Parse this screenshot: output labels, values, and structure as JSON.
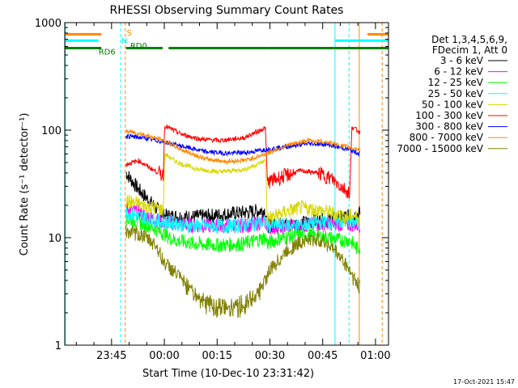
{
  "chart_data": {
    "type": "line",
    "title": "RHESSI Observing Summary Count Rates",
    "xlabel": "Start Time (10-Dec-10 23:31:42)",
    "ylabel": "Count Rate (s⁻¹ detector⁻¹)",
    "yscale": "log",
    "ylim": [
      1,
      1000
    ],
    "xlim_minutes": [
      0,
      92
    ],
    "x_ticks": [
      {
        "label": "23:45",
        "t": 13.3
      },
      {
        "label": "00:00",
        "t": 28.3
      },
      {
        "label": "00:15",
        "t": 43.3
      },
      {
        "label": "00:30",
        "t": 58.3
      },
      {
        "label": "00:45",
        "t": 73.3
      },
      {
        "label": "01:00",
        "t": 88.3
      }
    ],
    "y_ticks": [
      {
        "label": "1",
        "v": 1
      },
      {
        "label": "10",
        "v": 10
      },
      {
        "label": "100",
        "v": 100
      },
      {
        "label": "1000",
        "v": 1000
      }
    ],
    "legend_header": [
      "Det 1,3,4,5,6,9,",
      "FDecim 1, Att 0"
    ],
    "series": [
      {
        "name": "3 - 6 keV",
        "color": "#000000",
        "start": 17.4,
        "kx": [
          17.4,
          21,
          24,
          28,
          35,
          42,
          50,
          57,
          57.6,
          66,
          74,
          82,
          84
        ],
        "ky": [
          40,
          28,
          22,
          16,
          15.5,
          16,
          17,
          18,
          13,
          13.5,
          14.5,
          16,
          17
        ]
      },
      {
        "name": "6 - 12 keV",
        "color": "#ff00ff",
        "start": 17.4,
        "kx": [
          17.4,
          25,
          28,
          35,
          44,
          52,
          57,
          57.6,
          66,
          74,
          81,
          84
        ],
        "ky": [
          19,
          15,
          14,
          13,
          12.8,
          13,
          14,
          12.5,
          12.8,
          13.5,
          13.2,
          13
        ]
      },
      {
        "name": "12 - 25 keV",
        "color": "#00ff00",
        "start": 17.4,
        "kx": [
          17.4,
          21,
          24,
          28,
          31,
          38,
          44,
          51,
          57,
          57.6,
          61,
          66,
          70,
          75,
          78,
          81,
          83,
          84
        ],
        "ky": [
          15,
          14,
          13,
          11,
          9.5,
          8.7,
          8.5,
          8.8,
          10,
          8.8,
          9.8,
          10.5,
          10.5,
          10,
          9.5,
          9.5,
          8,
          8
        ]
      },
      {
        "name": "25 - 50 keV",
        "color": "#00ffff",
        "start": 17.4,
        "kx": [
          17.4,
          24,
          28,
          35,
          42,
          50,
          57,
          57.6,
          66,
          74,
          82,
          84
        ],
        "ky": [
          17,
          15,
          14,
          13,
          12.8,
          13,
          14,
          13,
          13,
          14,
          14,
          13.5
        ]
      },
      {
        "name": "50 - 100 keV",
        "color": "#d8d800",
        "start": 17.4,
        "kx": [
          17.4,
          25,
          28,
          28.4,
          32,
          38,
          44,
          51,
          57,
          57.6,
          62,
          67,
          72,
          76,
          80,
          81.5,
          82,
          84
        ],
        "ky": [
          22,
          19,
          18,
          60,
          50,
          43,
          41,
          43,
          52,
          15,
          17,
          19,
          18,
          17,
          15.5,
          16,
          16,
          15
        ]
      },
      {
        "name": "100 - 300 keV",
        "color": "#ff0000",
        "start": 17.4,
        "kx": [
          17.4,
          21,
          25,
          28,
          28.4,
          33,
          38,
          44,
          51,
          57,
          57.6,
          62,
          67,
          72,
          76,
          81,
          81.6,
          84
        ],
        "ky": [
          48,
          52,
          43,
          38,
          110,
          92,
          83,
          80,
          85,
          105,
          33,
          37,
          42,
          40,
          35,
          26,
          108,
          95
        ]
      },
      {
        "name": "300 - 800 keV",
        "color": "#0000ff",
        "start": 17.4,
        "kx": [
          17.4,
          22,
          28,
          34,
          40,
          46,
          52,
          57,
          63,
          69,
          74,
          80,
          84
        ],
        "ky": [
          88,
          85,
          78,
          70,
          63,
          61,
          62,
          66,
          70,
          75,
          74,
          67,
          60
        ]
      },
      {
        "name": "800 - 7000 keV",
        "color": "#ff8800",
        "start": 17.4,
        "kx": [
          17.4,
          22,
          28,
          34,
          40,
          46,
          52,
          57,
          63,
          69,
          74,
          80,
          84
        ],
        "ky": [
          98,
          92,
          80,
          64,
          54,
          51,
          53,
          60,
          72,
          80,
          78,
          70,
          66
        ]
      },
      {
        "name": "7000 - 15000 keV",
        "color": "#808000",
        "start": 17.4,
        "kx": [
          17.4,
          22,
          26,
          28,
          32,
          36,
          40,
          45,
          50,
          55,
          58,
          63,
          68,
          73,
          77,
          81,
          83,
          84
        ],
        "ky": [
          11.5,
          10.5,
          8.5,
          6,
          4.5,
          3.3,
          2.5,
          2.2,
          2.3,
          3,
          4.8,
          7.5,
          9.5,
          9.5,
          7.5,
          5,
          3.8,
          3.3
        ]
      }
    ],
    "flag_bars": [
      {
        "label": "S",
        "color": "#ff8800",
        "level": 780,
        "segments": [
          [
            0,
            10.4
          ],
          [
            86,
            92
          ]
        ]
      },
      {
        "label": "N",
        "color": "#00ffff",
        "level": 680,
        "segments": [
          [
            0,
            9.6
          ],
          [
            76.8,
            92
          ]
        ]
      },
      {
        "label": "RD0",
        "color": "#008000",
        "level": 580,
        "segments": [
          [
            0,
            10.4
          ],
          [
            17.4,
            27.8
          ],
          [
            29.5,
            57.7
          ],
          [
            57.7,
            76.6
          ],
          [
            76.6,
            92
          ]
        ]
      },
      {
        "label": "RD6",
        "color": "#008000",
        "level": 560,
        "segments": []
      }
    ],
    "flag_labels": [
      {
        "text": "S",
        "color": "#ff8800",
        "t": 17.6,
        "y": 760
      },
      {
        "text": "N",
        "color": "#00ffff",
        "t": 16.1,
        "y": 640
      },
      {
        "text": "RD0",
        "color": "#008000",
        "t": 18.6,
        "y": 575
      },
      {
        "text": "RD6",
        "color": "#008000",
        "t": 9.6,
        "y": 505
      }
    ],
    "vertical_markers": [
      {
        "t": 0.2,
        "color": "#00ffff",
        "style": "solid"
      },
      {
        "t": 15.9,
        "color": "#00ffff",
        "style": "dashed"
      },
      {
        "t": 17.2,
        "color": "#ff8800",
        "style": "dashed"
      },
      {
        "t": 76.8,
        "color": "#00ffff",
        "style": "solid"
      },
      {
        "t": 80.8,
        "color": "#00ffff",
        "style": "dashed"
      },
      {
        "t": 83.7,
        "color": "#ff8800",
        "style": "solid"
      },
      {
        "t": 90.2,
        "color": "#ff8800",
        "style": "dashed"
      }
    ]
  },
  "timestamp": "17-Oct-2021 15:47"
}
